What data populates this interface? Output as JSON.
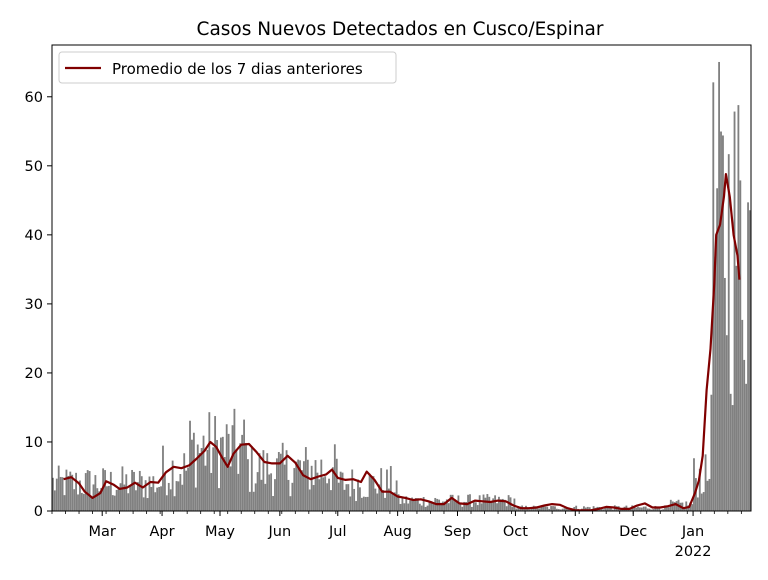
{
  "chart_data": {
    "type": "bar",
    "title": "Casos Nuevos Detectados en Cusco/Espinar",
    "xlabel": "",
    "ylabel": "",
    "ylim": [
      0,
      67.5
    ],
    "yticks": [
      0,
      10,
      20,
      30,
      40,
      50,
      60
    ],
    "xlim": [
      "2021-02-03",
      "2022-01-31"
    ],
    "xticks": [
      {
        "date": "2021-03-01",
        "label": "Mar"
      },
      {
        "date": "2021-04-01",
        "label": "Apr"
      },
      {
        "date": "2021-05-01",
        "label": "May"
      },
      {
        "date": "2021-06-01",
        "label": "Jun"
      },
      {
        "date": "2021-07-01",
        "label": "Jul"
      },
      {
        "date": "2021-08-01",
        "label": "Aug"
      },
      {
        "date": "2021-09-01",
        "label": "Sep"
      },
      {
        "date": "2021-10-01",
        "label": "Oct"
      },
      {
        "date": "2021-11-01",
        "label": "Nov"
      },
      {
        "date": "2021-12-01",
        "label": "Dec"
      },
      {
        "date": "2022-01-01",
        "label": "Jan",
        "sublabel": "2022"
      }
    ],
    "legend_position": "upper-left",
    "series": [
      {
        "kind": "bars",
        "color": "#808080",
        "approx_daily_level": [
          {
            "from": "2021-02-03",
            "to": "2021-03-01",
            "value": 4
          },
          {
            "from": "2021-03-01",
            "to": "2021-04-01",
            "value": 4
          },
          {
            "from": "2021-04-01",
            "to": "2021-04-15",
            "value": 6
          },
          {
            "from": "2021-04-15",
            "to": "2021-05-15",
            "value": 9
          },
          {
            "from": "2021-05-15",
            "to": "2021-07-01",
            "value": 6
          },
          {
            "from": "2021-07-01",
            "to": "2021-08-01",
            "value": 4
          },
          {
            "from": "2021-08-01",
            "to": "2021-10-01",
            "value": 1.5
          },
          {
            "from": "2021-10-01",
            "to": "2021-12-20",
            "value": 0.5
          },
          {
            "from": "2021-12-20",
            "to": "2022-01-01",
            "value": 1
          },
          {
            "from": "2022-01-01",
            "to": "2022-01-10",
            "value": 5
          },
          {
            "from": "2022-01-10",
            "to": "2022-01-31",
            "value": 40
          }
        ]
      },
      {
        "kind": "line",
        "name": "Promedio de los 7 dias anteriores",
        "color": "#800000",
        "points": [
          [
            "2021-02-09",
            4.6
          ],
          [
            "2021-02-13",
            4.9
          ],
          [
            "2021-02-17",
            4.0
          ],
          [
            "2021-02-20",
            2.8
          ],
          [
            "2021-02-24",
            1.9
          ],
          [
            "2021-02-28",
            2.6
          ],
          [
            "2021-03-03",
            4.3
          ],
          [
            "2021-03-07",
            3.8
          ],
          [
            "2021-03-10",
            3.2
          ],
          [
            "2021-03-14",
            3.4
          ],
          [
            "2021-03-18",
            4.1
          ],
          [
            "2021-03-22",
            3.4
          ],
          [
            "2021-03-26",
            4.2
          ],
          [
            "2021-03-30",
            4.1
          ],
          [
            "2021-04-03",
            5.6
          ],
          [
            "2021-04-07",
            6.4
          ],
          [
            "2021-04-11",
            6.2
          ],
          [
            "2021-04-15",
            6.6
          ],
          [
            "2021-04-19",
            7.6
          ],
          [
            "2021-04-23",
            8.7
          ],
          [
            "2021-04-26",
            10.0
          ],
          [
            "2021-04-29",
            9.3
          ],
          [
            "2021-05-02",
            7.8
          ],
          [
            "2021-05-05",
            6.4
          ],
          [
            "2021-05-08",
            8.3
          ],
          [
            "2021-05-12",
            9.6
          ],
          [
            "2021-05-16",
            9.7
          ],
          [
            "2021-05-20",
            8.5
          ],
          [
            "2021-05-24",
            7.1
          ],
          [
            "2021-05-28",
            6.9
          ],
          [
            "2021-06-01",
            6.9
          ],
          [
            "2021-06-05",
            8.0
          ],
          [
            "2021-06-09",
            7.0
          ],
          [
            "2021-06-13",
            5.2
          ],
          [
            "2021-06-17",
            4.6
          ],
          [
            "2021-06-21",
            5.0
          ],
          [
            "2021-06-25",
            5.3
          ],
          [
            "2021-06-28",
            6.0
          ],
          [
            "2021-07-01",
            4.8
          ],
          [
            "2021-07-05",
            4.5
          ],
          [
            "2021-07-09",
            4.6
          ],
          [
            "2021-07-13",
            4.2
          ],
          [
            "2021-07-16",
            5.7
          ],
          [
            "2021-07-20",
            4.5
          ],
          [
            "2021-07-24",
            2.8
          ],
          [
            "2021-07-28",
            2.8
          ],
          [
            "2021-08-01",
            2.1
          ],
          [
            "2021-08-05",
            1.9
          ],
          [
            "2021-08-09",
            1.6
          ],
          [
            "2021-08-13",
            1.7
          ],
          [
            "2021-08-17",
            1.4
          ],
          [
            "2021-08-21",
            1.0
          ],
          [
            "2021-08-25",
            1.0
          ],
          [
            "2021-08-29",
            1.9
          ],
          [
            "2021-09-02",
            1.1
          ],
          [
            "2021-09-06",
            1.0
          ],
          [
            "2021-09-10",
            1.5
          ],
          [
            "2021-09-14",
            1.4
          ],
          [
            "2021-09-18",
            1.3
          ],
          [
            "2021-09-22",
            1.5
          ],
          [
            "2021-09-26",
            1.4
          ],
          [
            "2021-09-30",
            0.8
          ],
          [
            "2021-10-04",
            0.4
          ],
          [
            "2021-10-08",
            0.4
          ],
          [
            "2021-10-12",
            0.5
          ],
          [
            "2021-10-16",
            0.8
          ],
          [
            "2021-10-20",
            1.0
          ],
          [
            "2021-10-24",
            0.9
          ],
          [
            "2021-10-28",
            0.4
          ],
          [
            "2021-11-01",
            0.1
          ],
          [
            "2021-11-05",
            0.1
          ],
          [
            "2021-11-09",
            0.1
          ],
          [
            "2021-11-13",
            0.3
          ],
          [
            "2021-11-17",
            0.6
          ],
          [
            "2021-11-21",
            0.5
          ],
          [
            "2021-11-25",
            0.3
          ],
          [
            "2021-11-29",
            0.3
          ],
          [
            "2021-12-03",
            0.8
          ],
          [
            "2021-12-07",
            1.1
          ],
          [
            "2021-12-11",
            0.5
          ],
          [
            "2021-12-15",
            0.5
          ],
          [
            "2021-12-19",
            0.7
          ],
          [
            "2021-12-23",
            1.0
          ],
          [
            "2021-12-27",
            0.4
          ],
          [
            "2021-12-30",
            0.6
          ],
          [
            "2022-01-02",
            2.6
          ],
          [
            "2022-01-04",
            4.4
          ],
          [
            "2022-01-06",
            8.0
          ],
          [
            "2022-01-08",
            17.5
          ],
          [
            "2022-01-10",
            23.5
          ],
          [
            "2022-01-12",
            33.0
          ],
          [
            "2022-01-13",
            40.0
          ],
          [
            "2022-01-15",
            41.5
          ],
          [
            "2022-01-17",
            45.6
          ],
          [
            "2022-01-18",
            48.8
          ],
          [
            "2022-01-20",
            45.5
          ],
          [
            "2022-01-22",
            40.0
          ],
          [
            "2022-01-24",
            37.0
          ],
          [
            "2022-01-25",
            33.5
          ]
        ]
      }
    ]
  }
}
